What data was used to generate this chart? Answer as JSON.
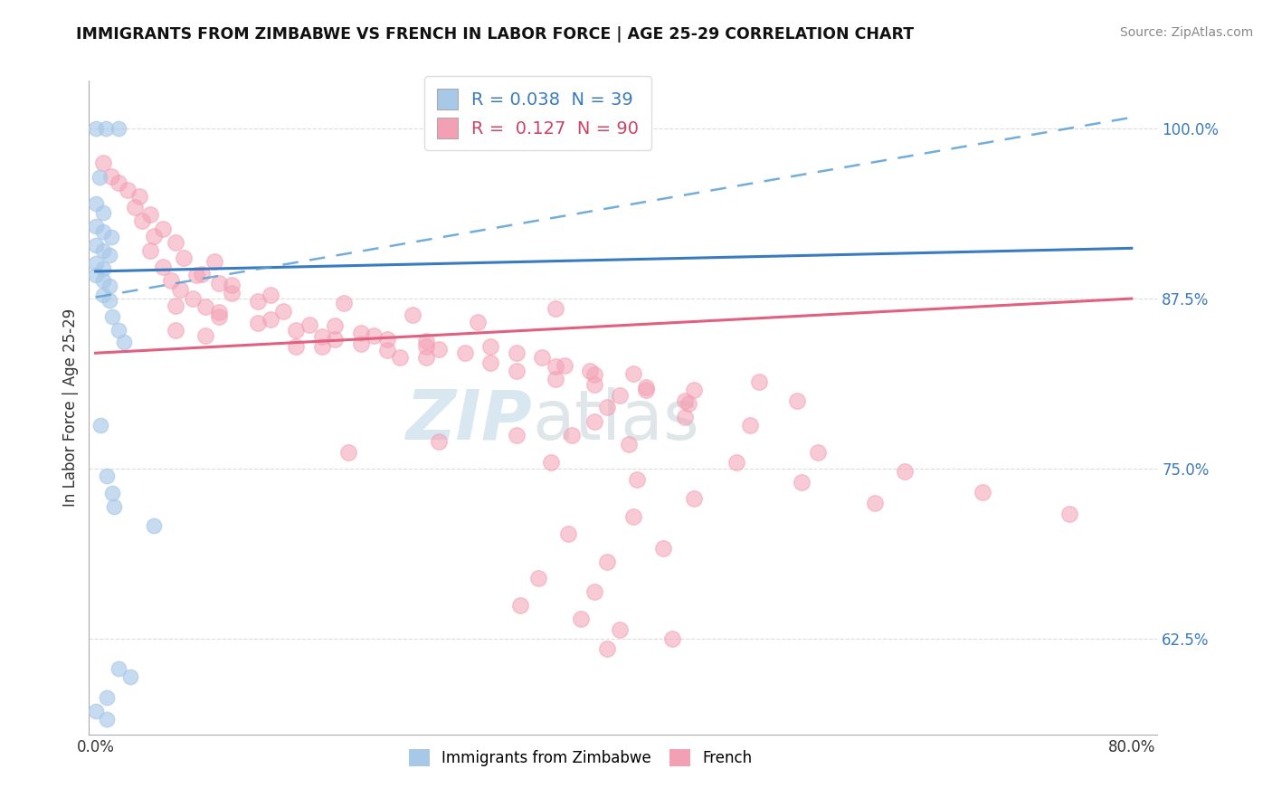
{
  "title": "IMMIGRANTS FROM ZIMBABWE VS FRENCH IN LABOR FORCE | AGE 25-29 CORRELATION CHART",
  "source": "Source: ZipAtlas.com",
  "ylabel": "In Labor Force | Age 25-29",
  "xlim": [
    -0.005,
    0.82
  ],
  "ylim": [
    0.555,
    1.035
  ],
  "ytick_labels": [
    "62.5%",
    "75.0%",
    "87.5%",
    "100.0%"
  ],
  "ytick_values": [
    0.625,
    0.75,
    0.875,
    1.0
  ],
  "xtick_labels": [
    "0.0%",
    "80.0%"
  ],
  "xtick_values": [
    0.0,
    0.8
  ],
  "zim_color": "#a8c8e8",
  "fr_color": "#f4a0b4",
  "line_zim_color": "#3a7abf",
  "line_fr_color": "#e06080",
  "dashed_color": "#5a9fd4",
  "watermark_zip": "ZIP",
  "watermark_atlas": "atlas",
  "zimbabwe_points": [
    [
      0.0,
      1.0
    ],
    [
      0.008,
      1.0
    ],
    [
      0.018,
      1.0
    ],
    [
      0.003,
      0.964
    ],
    [
      0.0,
      0.945
    ],
    [
      0.006,
      0.938
    ],
    [
      0.0,
      0.928
    ],
    [
      0.006,
      0.924
    ],
    [
      0.012,
      0.92
    ],
    [
      0.0,
      0.914
    ],
    [
      0.006,
      0.91
    ],
    [
      0.011,
      0.907
    ],
    [
      0.0,
      0.901
    ],
    [
      0.006,
      0.897
    ],
    [
      0.0,
      0.892
    ],
    [
      0.006,
      0.888
    ],
    [
      0.011,
      0.884
    ],
    [
      0.006,
      0.878
    ],
    [
      0.011,
      0.874
    ],
    [
      0.013,
      0.862
    ],
    [
      0.018,
      0.852
    ],
    [
      0.022,
      0.843
    ],
    [
      0.004,
      0.782
    ],
    [
      0.009,
      0.745
    ],
    [
      0.013,
      0.732
    ],
    [
      0.014,
      0.722
    ],
    [
      0.045,
      0.708
    ],
    [
      0.018,
      0.603
    ],
    [
      0.027,
      0.597
    ],
    [
      0.009,
      0.582
    ],
    [
      0.0,
      0.572
    ],
    [
      0.009,
      0.566
    ]
  ],
  "french_points": [
    [
      0.006,
      0.975
    ],
    [
      0.012,
      0.965
    ],
    [
      0.018,
      0.96
    ],
    [
      0.025,
      0.955
    ],
    [
      0.034,
      0.95
    ],
    [
      0.03,
      0.942
    ],
    [
      0.042,
      0.937
    ],
    [
      0.036,
      0.932
    ],
    [
      0.052,
      0.926
    ],
    [
      0.045,
      0.921
    ],
    [
      0.062,
      0.916
    ],
    [
      0.042,
      0.91
    ],
    [
      0.068,
      0.905
    ],
    [
      0.092,
      0.902
    ],
    [
      0.052,
      0.898
    ],
    [
      0.082,
      0.893
    ],
    [
      0.058,
      0.888
    ],
    [
      0.095,
      0.886
    ],
    [
      0.065,
      0.882
    ],
    [
      0.105,
      0.879
    ],
    [
      0.075,
      0.875
    ],
    [
      0.125,
      0.873
    ],
    [
      0.085,
      0.869
    ],
    [
      0.145,
      0.866
    ],
    [
      0.095,
      0.862
    ],
    [
      0.125,
      0.857
    ],
    [
      0.185,
      0.855
    ],
    [
      0.155,
      0.852
    ],
    [
      0.205,
      0.85
    ],
    [
      0.175,
      0.847
    ],
    [
      0.225,
      0.845
    ],
    [
      0.205,
      0.842
    ],
    [
      0.255,
      0.84
    ],
    [
      0.225,
      0.837
    ],
    [
      0.285,
      0.835
    ],
    [
      0.255,
      0.832
    ],
    [
      0.305,
      0.828
    ],
    [
      0.355,
      0.825
    ],
    [
      0.325,
      0.822
    ],
    [
      0.385,
      0.819
    ],
    [
      0.355,
      0.816
    ],
    [
      0.385,
      0.812
    ],
    [
      0.425,
      0.808
    ],
    [
      0.405,
      0.804
    ],
    [
      0.455,
      0.8
    ],
    [
      0.355,
      0.868
    ],
    [
      0.295,
      0.858
    ],
    [
      0.245,
      0.863
    ],
    [
      0.185,
      0.845
    ],
    [
      0.155,
      0.84
    ],
    [
      0.325,
      0.835
    ],
    [
      0.265,
      0.838
    ],
    [
      0.135,
      0.878
    ],
    [
      0.192,
      0.872
    ],
    [
      0.105,
      0.885
    ],
    [
      0.078,
      0.892
    ],
    [
      0.062,
      0.87
    ],
    [
      0.095,
      0.865
    ],
    [
      0.135,
      0.86
    ],
    [
      0.165,
      0.856
    ],
    [
      0.215,
      0.848
    ],
    [
      0.255,
      0.844
    ],
    [
      0.062,
      0.852
    ],
    [
      0.085,
      0.848
    ],
    [
      0.175,
      0.84
    ],
    [
      0.235,
      0.832
    ],
    [
      0.362,
      0.826
    ],
    [
      0.415,
      0.82
    ],
    [
      0.512,
      0.814
    ],
    [
      0.462,
      0.808
    ],
    [
      0.542,
      0.8
    ],
    [
      0.395,
      0.795
    ],
    [
      0.455,
      0.788
    ],
    [
      0.505,
      0.782
    ],
    [
      0.368,
      0.775
    ],
    [
      0.412,
      0.768
    ],
    [
      0.558,
      0.762
    ],
    [
      0.495,
      0.755
    ],
    [
      0.625,
      0.748
    ],
    [
      0.545,
      0.74
    ],
    [
      0.685,
      0.733
    ],
    [
      0.602,
      0.725
    ],
    [
      0.752,
      0.717
    ],
    [
      0.305,
      0.84
    ],
    [
      0.345,
      0.832
    ],
    [
      0.382,
      0.822
    ],
    [
      0.425,
      0.81
    ],
    [
      0.458,
      0.798
    ],
    [
      0.385,
      0.785
    ],
    [
      0.325,
      0.775
    ],
    [
      0.265,
      0.77
    ],
    [
      0.195,
      0.762
    ],
    [
      0.352,
      0.755
    ],
    [
      0.418,
      0.742
    ],
    [
      0.462,
      0.728
    ],
    [
      0.415,
      0.715
    ],
    [
      0.365,
      0.702
    ],
    [
      0.438,
      0.692
    ],
    [
      0.395,
      0.682
    ],
    [
      0.342,
      0.67
    ],
    [
      0.385,
      0.66
    ],
    [
      0.328,
      0.65
    ],
    [
      0.375,
      0.64
    ],
    [
      0.405,
      0.632
    ],
    [
      0.445,
      0.625
    ],
    [
      0.395,
      0.618
    ]
  ]
}
